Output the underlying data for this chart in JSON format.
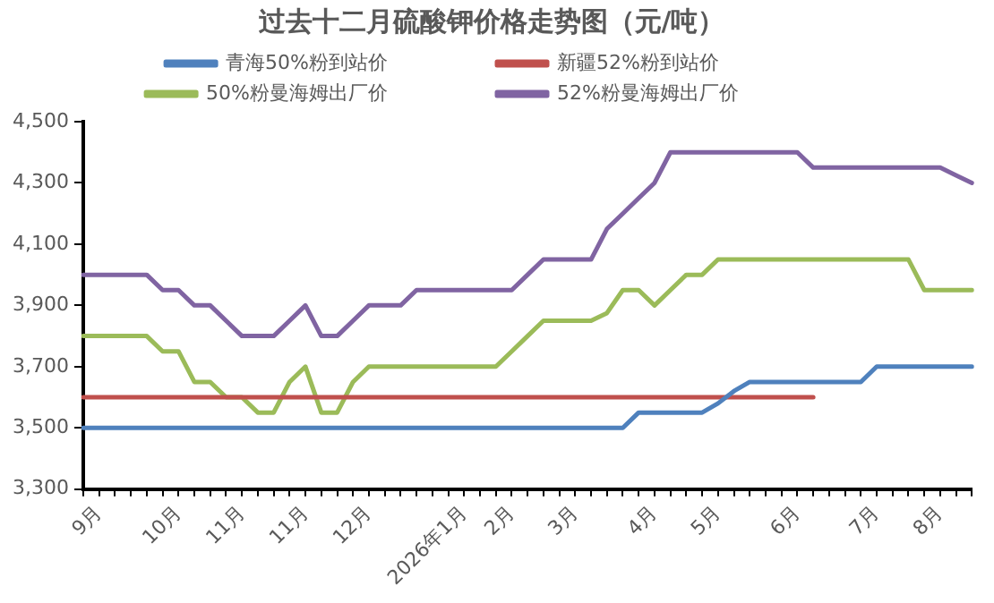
{
  "chart_data": {
    "type": "line",
    "title": "过去十二月硫酸钾价格走势图（元/吨）",
    "categories": [
      null,
      "9月",
      null,
      null,
      null,
      null,
      "10月",
      null,
      null,
      null,
      "11月",
      null,
      null,
      null,
      "11月",
      null,
      null,
      null,
      "12月",
      null,
      null,
      null,
      null,
      null,
      "2026年1月",
      null,
      null,
      "2月",
      null,
      null,
      null,
      "3月",
      null,
      null,
      null,
      null,
      "4月",
      null,
      null,
      null,
      "5月",
      null,
      null,
      null,
      null,
      "6月",
      null,
      null,
      null,
      null,
      "7月",
      null,
      null,
      null,
      "8月",
      null,
      null
    ],
    "series": [
      {
        "name": "青海50%粉到站价",
        "color": "#4f81bd",
        "values": [
          3500,
          3500,
          3500,
          3500,
          3500,
          3500,
          3500,
          3500,
          3500,
          3500,
          3500,
          3500,
          3500,
          3500,
          3500,
          3500,
          3500,
          3500,
          3500,
          3500,
          3500,
          3500,
          3500,
          3500,
          3500,
          3500,
          3500,
          3500,
          3500,
          3500,
          3500,
          3500,
          3500,
          3500,
          3500,
          3550,
          3550,
          3550,
          3550,
          3550,
          3580,
          3620,
          3650,
          3650,
          3650,
          3650,
          3650,
          3650,
          3650,
          3650,
          3700,
          3700,
          3700,
          3700,
          3700,
          3700,
          3700
        ]
      },
      {
        "name": "新疆52%粉到站价",
        "color": "#c0504d",
        "values": [
          3600,
          3600,
          3600,
          3600,
          3600,
          3600,
          3600,
          3600,
          3600,
          3600,
          3600,
          3600,
          3600,
          3600,
          3600,
          3600,
          3600,
          3600,
          3600,
          3600,
          3600,
          3600,
          3600,
          3600,
          3600,
          3600,
          3600,
          3600,
          3600,
          3600,
          3600,
          3600,
          3600,
          3600,
          3600,
          3600,
          3600,
          3600,
          3600,
          3600,
          3600,
          3600,
          3600,
          3600,
          3600,
          3600,
          3600,
          null,
          null,
          null,
          null,
          null,
          null,
          null,
          null,
          null,
          null
        ]
      },
      {
        "name": "50%粉曼海姆出厂价",
        "color": "#9bbb59",
        "values": [
          3800,
          3800,
          3800,
          3800,
          3800,
          3750,
          3750,
          3650,
          3650,
          3600,
          3600,
          3550,
          3550,
          3650,
          3700,
          3550,
          3550,
          3650,
          3700,
          3700,
          3700,
          3700,
          3700,
          3700,
          3700,
          3700,
          3700,
          3750,
          3800,
          3850,
          3850,
          3850,
          3850,
          3875,
          3950,
          3950,
          3900,
          3950,
          4000,
          4000,
          4050,
          4050,
          4050,
          4050,
          4050,
          4050,
          4050,
          4050,
          4050,
          4050,
          4050,
          4050,
          4050,
          3950,
          3950,
          3950,
          3950
        ]
      },
      {
        "name": "52%粉曼海姆出厂价",
        "color": "#8064a2",
        "values": [
          4000,
          4000,
          4000,
          4000,
          4000,
          3950,
          3950,
          3900,
          3900,
          3850,
          3800,
          3800,
          3800,
          3850,
          3900,
          3800,
          3800,
          3850,
          3900,
          3900,
          3900,
          3950,
          3950,
          3950,
          3950,
          3950,
          3950,
          3950,
          4000,
          4050,
          4050,
          4050,
          4050,
          4150,
          4200,
          4250,
          4300,
          4400,
          4400,
          4400,
          4400,
          4400,
          4400,
          4400,
          4400,
          4400,
          4350,
          4350,
          4350,
          4350,
          4350,
          4350,
          4350,
          4350,
          4350,
          4325,
          4300
        ]
      }
    ],
    "ylim": [
      3300,
      4500
    ],
    "yticks": [
      {
        "value": 3300,
        "label": "3,300"
      },
      {
        "value": 3500,
        "label": "3,500"
      },
      {
        "value": 3700,
        "label": "3,700"
      },
      {
        "value": 3900,
        "label": "3,900"
      },
      {
        "value": 4100,
        "label": "4,100"
      },
      {
        "value": 4300,
        "label": "4,300"
      },
      {
        "value": 4500,
        "label": "4,500"
      }
    ],
    "grid": false,
    "legend": "top",
    "marker": "none",
    "line_style": "solid"
  }
}
